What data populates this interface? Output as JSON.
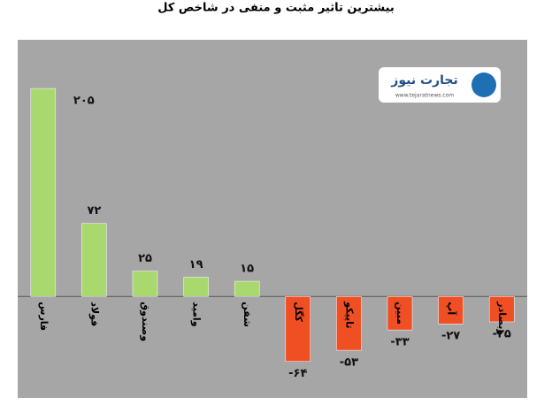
{
  "chart_data": {
    "type": "bar",
    "title": "بیشترین تاثیر مثبت و منفی در شاخص کل",
    "categories": [
      "فارس",
      "فولاد",
      "وصندوق",
      "وامید",
      "شفن",
      "کگل",
      "تاپیکو",
      "مبین",
      "آپ",
      "وبصادر"
    ],
    "values": [
      205,
      72,
      25,
      19,
      15,
      -64,
      -53,
      -33,
      -27,
      -25
    ],
    "value_labels": [
      "۲۰۵",
      "۷۲",
      "۲۵",
      "۱۹",
      "۱۵",
      "-۶۴",
      "-۵۳",
      "-۳۳",
      "-۲۷",
      "-۲۵"
    ],
    "positive_color": "#a9d86e",
    "negative_color": "#f04e23",
    "ylim": [
      -100,
      253
    ]
  },
  "logo": {
    "name": "تجارت نیوز",
    "url": "www.tejaratnews.com"
  }
}
